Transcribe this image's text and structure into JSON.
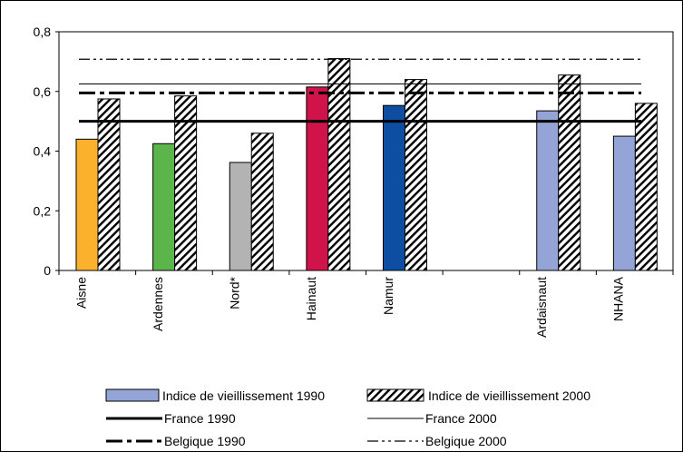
{
  "chart_data": {
    "type": "bar",
    "categories": [
      "Aisne",
      "Ardennes",
      "Nord*",
      "Hainaut",
      "Namur",
      "",
      "Ardaisnaut",
      "NHANA"
    ],
    "series": [
      {
        "name": "Indice de vieillissement 1990",
        "values": [
          0.44,
          0.425,
          0.362,
          0.615,
          0.553,
          null,
          0.535,
          0.45
        ],
        "colors": [
          "#fbb12c",
          "#5cb54a",
          "#b3b3b3",
          "#d0134a",
          "#0d4ea2",
          null,
          "#95a4d6",
          "#95a4d6"
        ]
      },
      {
        "name": "Indice de vieillissement 2000",
        "values": [
          0.575,
          0.585,
          0.46,
          0.71,
          0.64,
          null,
          0.655,
          0.56
        ],
        "pattern": "diagonal-hatch"
      }
    ],
    "reference_lines": [
      {
        "name": "France 1990",
        "value": 0.5,
        "style": "thick-solid"
      },
      {
        "name": "France 2000",
        "value": 0.625,
        "style": "thin-solid"
      },
      {
        "name": "Belgique 1990",
        "value": 0.595,
        "style": "thick-dash"
      },
      {
        "name": "Belgique 2000",
        "value": 0.708,
        "style": "dash-dot-dot"
      }
    ],
    "y_ticks": [
      "0",
      "0,2",
      "0,4",
      "0,6",
      "0,8"
    ],
    "ylim": [
      0,
      0.8
    ],
    "legend_position": "bottom",
    "grid": false
  }
}
